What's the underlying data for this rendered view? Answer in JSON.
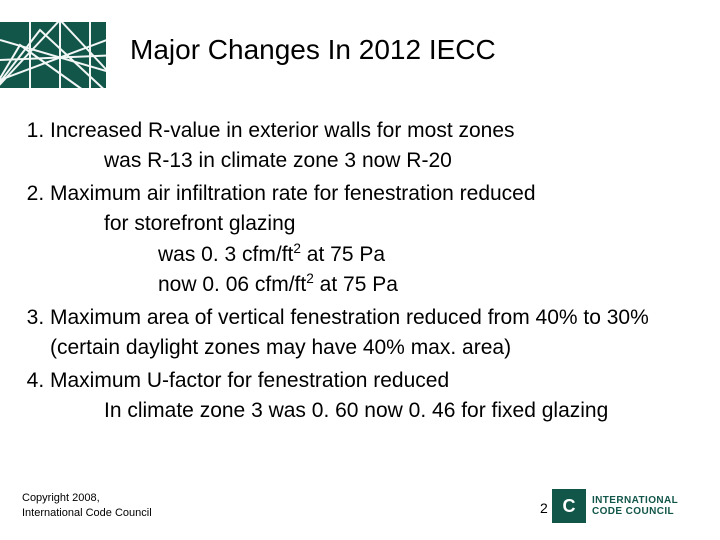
{
  "colors": {
    "band": "#12564a",
    "text": "#000000",
    "background": "#ffffff",
    "logo": "#12564a"
  },
  "typography": {
    "title_fontsize": 28,
    "body_fontsize": 21,
    "copyright_fontsize": 11
  },
  "title": "Major Changes In 2012 IECC",
  "items": [
    {
      "main": "Increased R-value in exterior walls for most zones",
      "sub1": [
        "was R-13 in climate zone 3 now R-20"
      ],
      "sub2": []
    },
    {
      "main": "Maximum air infiltration rate for fenestration reduced",
      "sub1": [
        "for storefront glazing"
      ],
      "sub2": [
        "was  0. 3 cfm/ft² at 75 Pa",
        "now 0. 06 cfm/ft² at 75 Pa"
      ]
    },
    {
      "main": "Maximum area of vertical fenestration reduced from 40% to 30% (certain daylight zones may have 40% max. area)",
      "sub1": [],
      "sub2": []
    },
    {
      "main": "Maximum U-factor for fenestration reduced",
      "sub1": [
        "In climate zone 3 was 0. 60 now 0. 46 for fixed glazing"
      ],
      "sub2": []
    }
  ],
  "copyright_line1": "Copyright 2008,",
  "copyright_line2": "International Code Council",
  "page_number": "2",
  "logo_initials": "C",
  "logo_line1": "INTERNATIONAL",
  "logo_line2": "CODE COUNCIL"
}
